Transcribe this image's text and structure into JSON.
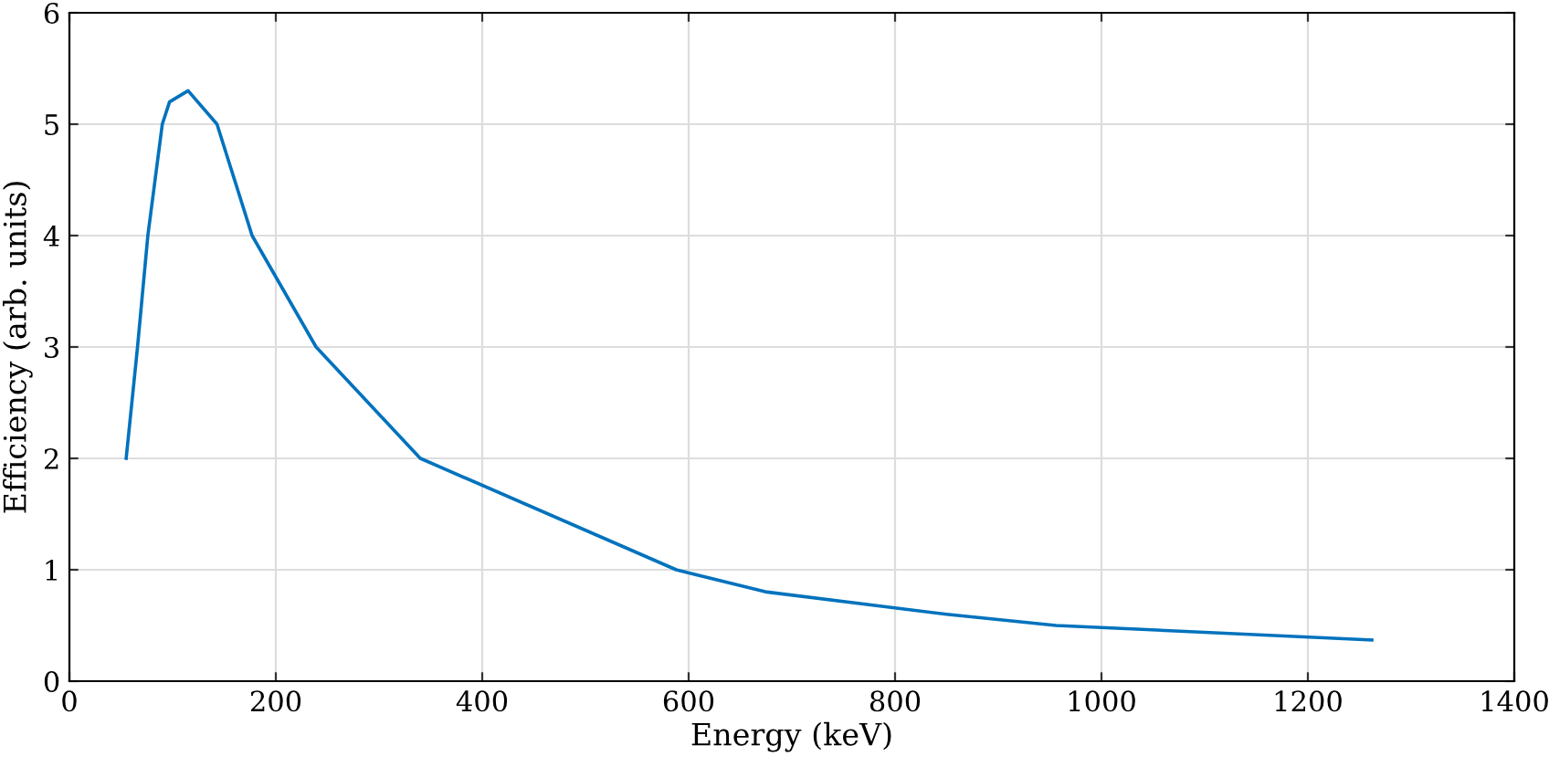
{
  "chart_data": {
    "type": "line",
    "xlabel": "Energy (keV)",
    "ylabel": "Efficiency (arb. units)",
    "x": [
      55,
      66,
      76,
      90,
      97,
      115,
      143,
      177,
      239,
      340,
      588,
      676,
      850,
      956,
      1262
    ],
    "series": [
      {
        "color": "#0072bd",
        "values": [
          2.0,
          3.0,
          4.0,
          5.0,
          5.2,
          5.3,
          5.0,
          4.0,
          3.0,
          2.0,
          1.0,
          0.8,
          0.6,
          0.5,
          0.37
        ]
      }
    ],
    "xlim": [
      0,
      1400
    ],
    "ylim": [
      0,
      6
    ],
    "xticks": [
      0,
      200,
      400,
      600,
      800,
      1000,
      1200,
      1400
    ],
    "yticks": [
      0,
      1,
      2,
      3,
      4,
      5,
      6
    ],
    "grid": true,
    "marker": "none",
    "line_style": "solid"
  }
}
